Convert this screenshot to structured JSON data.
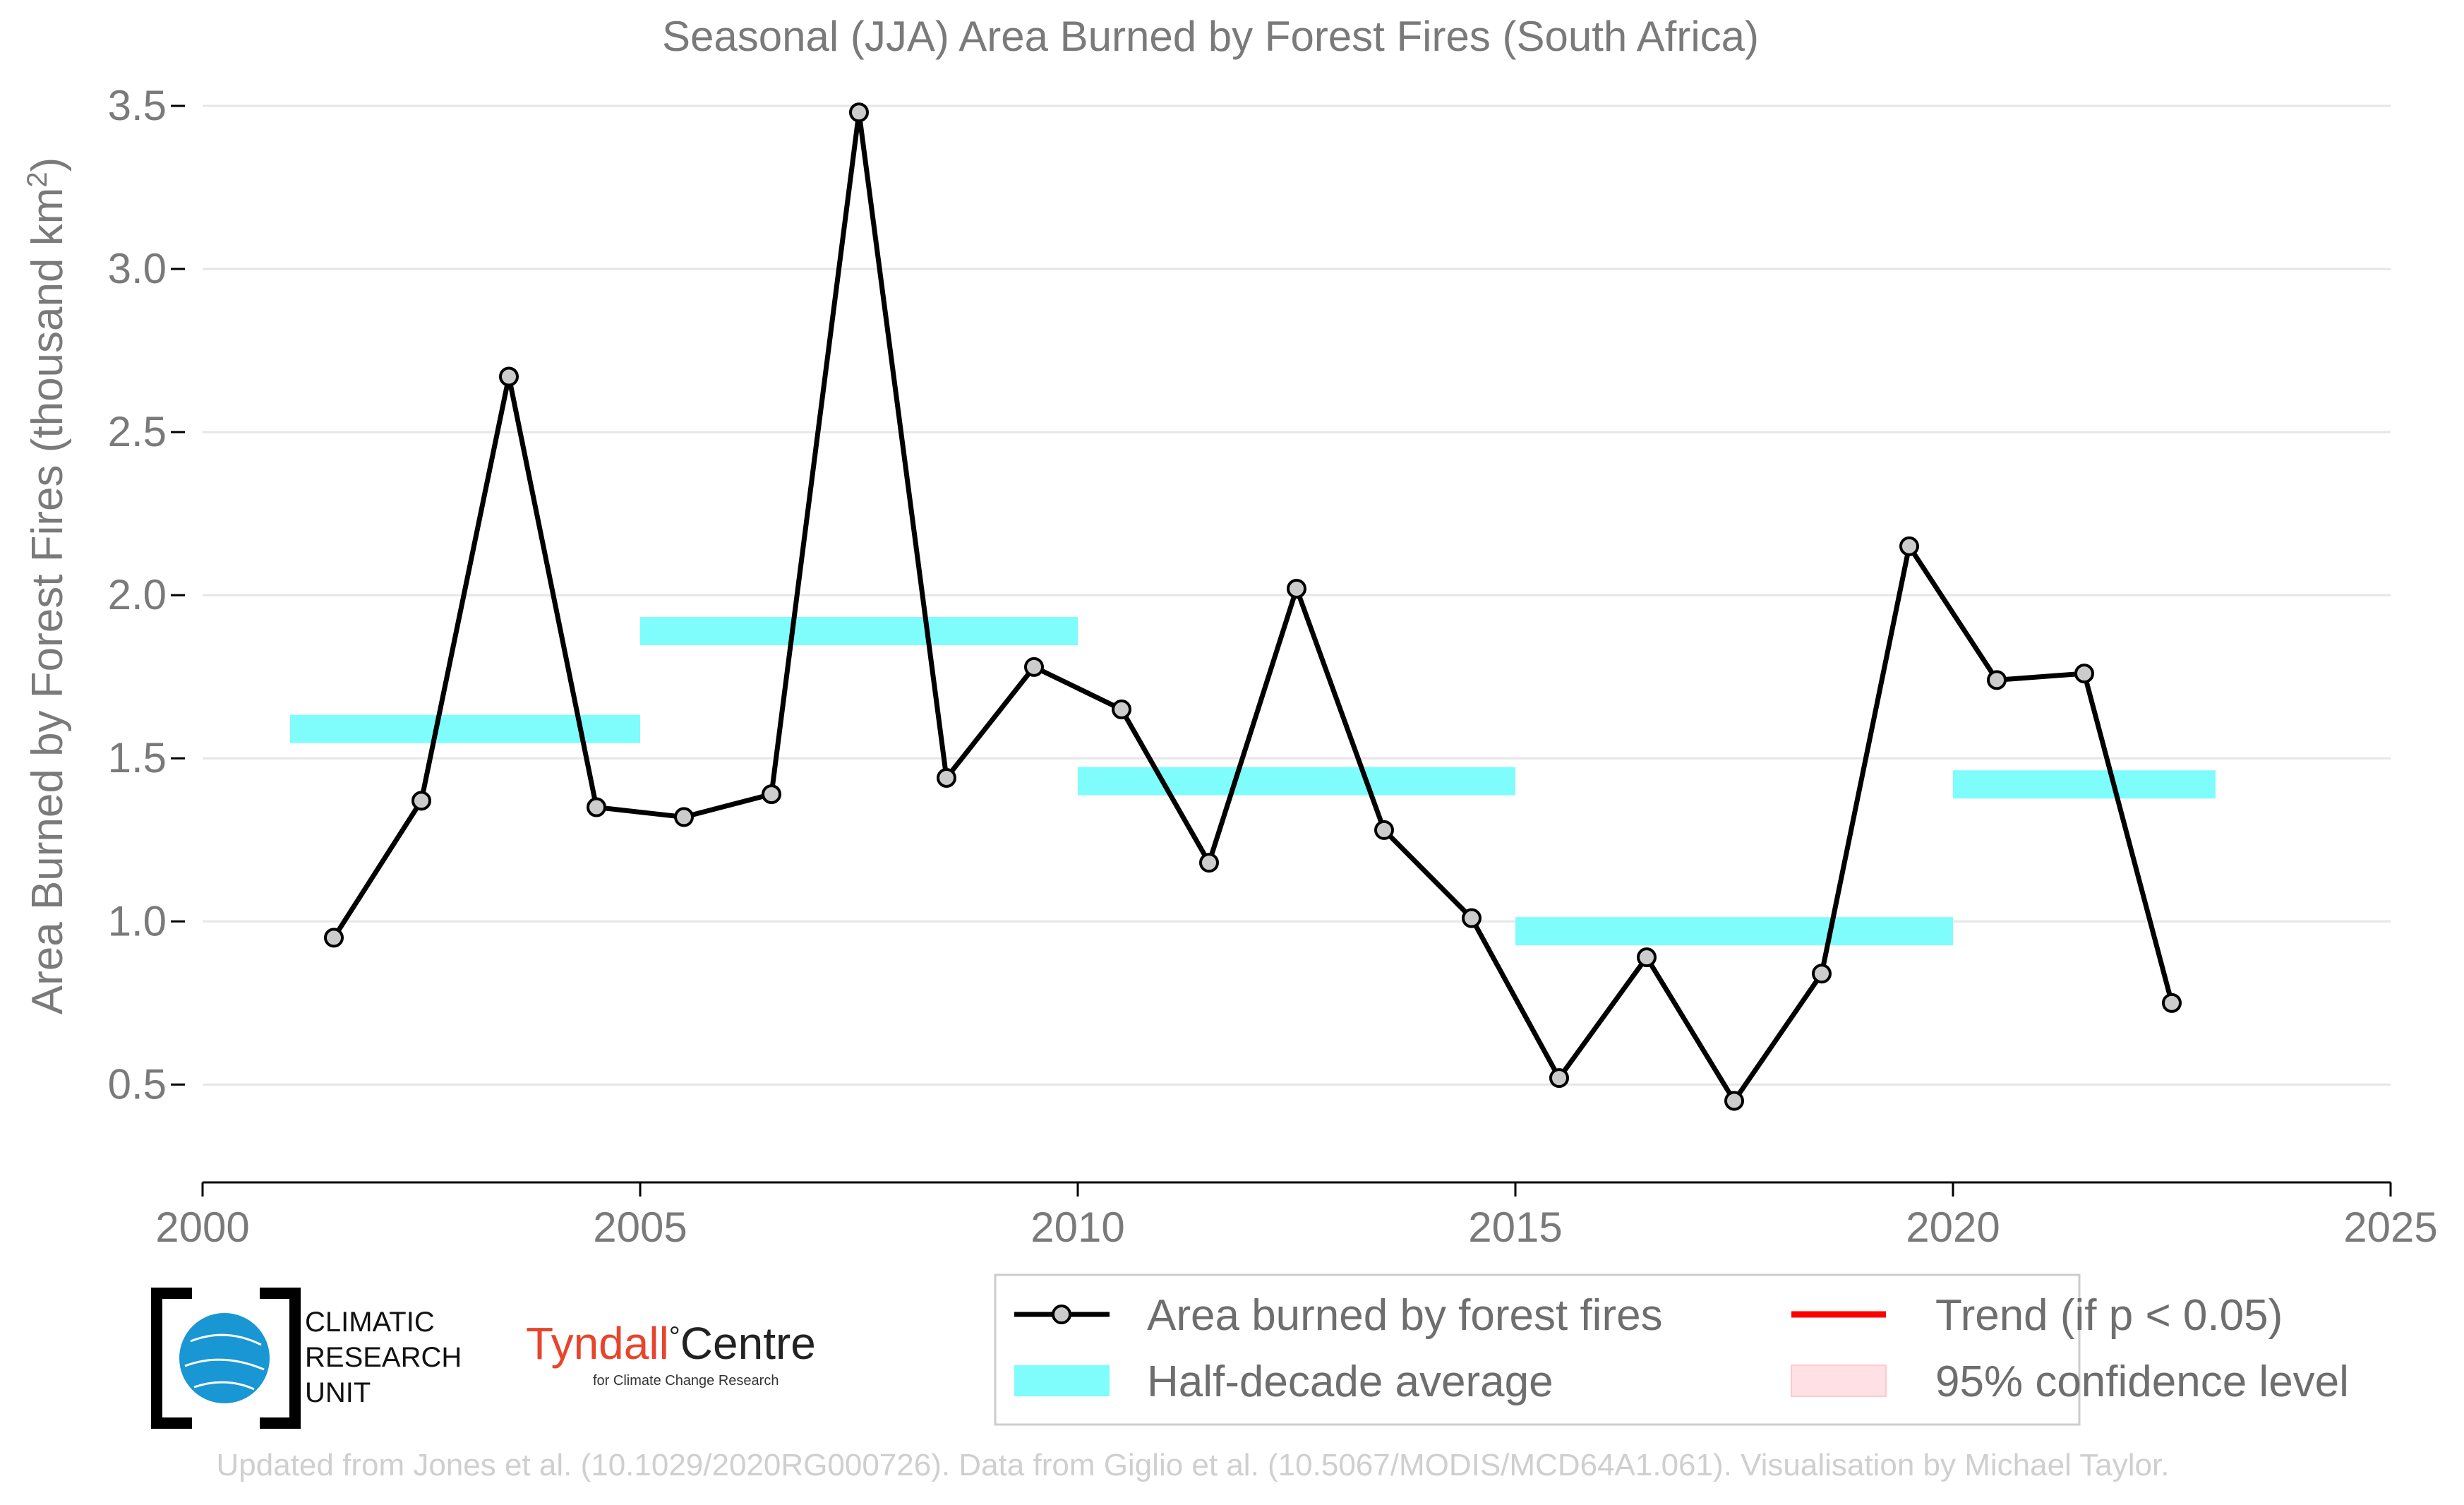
{
  "chart_data": {
    "type": "line",
    "title": "Seasonal (JJA) Area Burned by Forest Fires (South Africa)",
    "ylabel_main": "Area Burned by Forest Fires (thousand km",
    "ylabel_sup": "2",
    "ylabel_close": ")",
    "xlabel": "",
    "xlim": [
      2000,
      2025
    ],
    "ylim": [
      0.2,
      3.5
    ],
    "xticks": [
      "2000",
      "2005",
      "2010",
      "2015",
      "2020",
      "2025"
    ],
    "yticks": [
      "0.5",
      "1.0",
      "1.5",
      "2.0",
      "2.5",
      "3.0",
      "3.5"
    ],
    "grid": "horizontal",
    "series": [
      {
        "name": "Area burned by forest fires",
        "color": "#000000",
        "x": [
          2001.5,
          2002.5,
          2003.5,
          2004.5,
          2005.5,
          2006.5,
          2007.5,
          2008.5,
          2009.5,
          2010.5,
          2011.5,
          2012.5,
          2013.5,
          2014.5,
          2015.5,
          2016.5,
          2017.5,
          2018.5,
          2019.5,
          2020.5,
          2021.5,
          2022.5
        ],
        "y": [
          0.95,
          1.37,
          2.67,
          1.35,
          1.32,
          1.39,
          3.48,
          1.44,
          1.78,
          1.65,
          1.18,
          2.02,
          1.28,
          1.01,
          0.52,
          0.89,
          0.45,
          0.84,
          2.15,
          1.74,
          1.76,
          0.75
        ]
      }
    ],
    "half_decade_average": {
      "name": "Half-decade average",
      "color": "#7ffcfc",
      "segments": [
        {
          "x_start": 2001,
          "x_end": 2005,
          "y": 1.59
        },
        {
          "x_start": 2005,
          "x_end": 2010,
          "y": 1.89
        },
        {
          "x_start": 2010,
          "x_end": 2015,
          "y": 1.43
        },
        {
          "x_start": 2015,
          "x_end": 2020,
          "y": 0.97
        },
        {
          "x_start": 2020,
          "x_end": 2023,
          "y": 1.42
        }
      ]
    },
    "legend": {
      "placement": "bottom-right",
      "items": [
        {
          "label": "Area burned by forest fires",
          "symbol": "line-marker",
          "color": "#000000"
        },
        {
          "label": "Trend (if p < 0.05)",
          "symbol": "line",
          "color": "#ff0000"
        },
        {
          "label": "Half-decade average",
          "symbol": "band",
          "color": "#7ffcfc"
        },
        {
          "label": "95% confidence level",
          "symbol": "patch",
          "color": "#ffe0e4"
        }
      ]
    }
  },
  "logos": {
    "cru": {
      "line1": "CLIMATIC",
      "line2": "RESEARCH",
      "line3": "UNIT"
    },
    "tyndall": {
      "name1": "Tyndall",
      "degree": "°",
      "name2": "Centre",
      "subtitle": "for Climate Change Research"
    }
  },
  "footer": "Updated from Jones et al. (10.1029/2020RG000726). Data from Giglio et al. (10.5067/MODIS/MCD64A1.061). Visualisation by Michael Taylor."
}
